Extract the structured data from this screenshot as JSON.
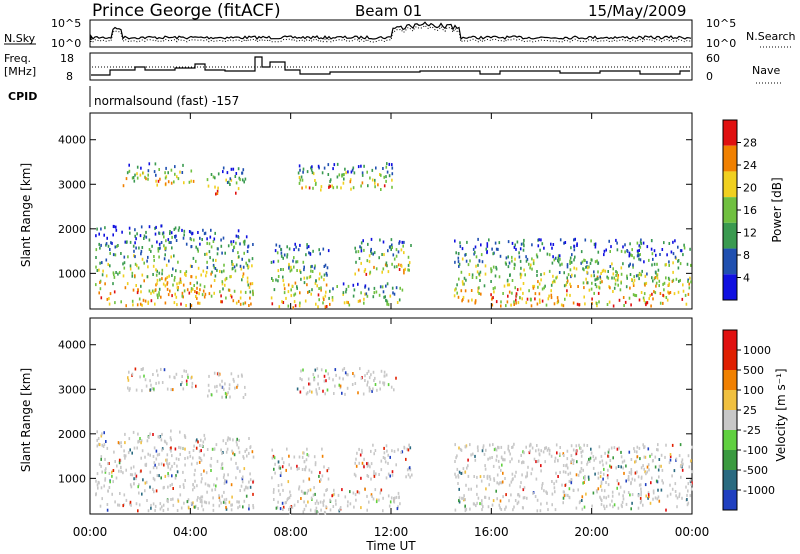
{
  "header": {
    "station": "Prince George (fitACF)",
    "beam": "Beam 01",
    "date": "15/May/2009"
  },
  "noise_panel": {
    "left_label": "N.Sky",
    "right_label": "N.Search",
    "left_ticks": [
      "10^5",
      "10^0"
    ],
    "right_ticks": [
      "10^5",
      "10^0"
    ]
  },
  "freq_panel": {
    "left_label_1": "Freq.",
    "left_label_2": "[MHz]",
    "right_label": "Nave",
    "left_ticks": [
      "18",
      "8"
    ],
    "right_ticks": [
      "60",
      "0"
    ]
  },
  "cpid_panel": {
    "label": "CPID",
    "text": "normalsound (fast) -157"
  },
  "power_panel": {
    "ylabel": "Slant Range [km]",
    "yticks": [
      "4000",
      "3000",
      "2000",
      "1000"
    ],
    "colorbar_label": "Power [dB]",
    "colorbar_ticks": [
      "28",
      "24",
      "20",
      "16",
      "12",
      "8",
      "4"
    ],
    "colors": [
      "#1010e0",
      "#2050b0",
      "#3a9a50",
      "#70c040",
      "#f0d020",
      "#f08000",
      "#e01010"
    ]
  },
  "velocity_panel": {
    "ylabel": "Slant Range [km]",
    "yticks": [
      "4000",
      "3000",
      "2000",
      "1000"
    ],
    "colorbar_label": "Velocity [m s⁻¹]",
    "colorbar_ticks": [
      "1000",
      "500",
      "100",
      "25",
      "-25",
      "-100",
      "-500",
      "-1000"
    ],
    "colors": [
      "#2040c0",
      "#2a6a80",
      "#3a9a40",
      "#60d040",
      "#c8c8c8",
      "#f0c040",
      "#f08000",
      "#e02000",
      "#e01010"
    ]
  },
  "x_axis": {
    "ticks": [
      "00:00",
      "04:00",
      "08:00",
      "12:00",
      "16:00",
      "20:00",
      "00:00"
    ],
    "label": "Time UT"
  },
  "chart_data": {
    "type": "heatmap",
    "title": "Prince George (fitACF)",
    "subtitle": "Beam 01",
    "xlabel": "Time UT",
    "ylabel": "Slant Range [km]",
    "x_range_hours": [
      0,
      24
    ],
    "ylim": [
      200,
      4600
    ],
    "grid": false,
    "panels": [
      "Power [dB]",
      "Velocity [m s⁻¹]"
    ],
    "power_scale": [
      4,
      8,
      12,
      16,
      20,
      24,
      28
    ],
    "velocity_scale": [
      -1000,
      -500,
      -100,
      -25,
      25,
      100,
      500,
      1000
    ]
  }
}
